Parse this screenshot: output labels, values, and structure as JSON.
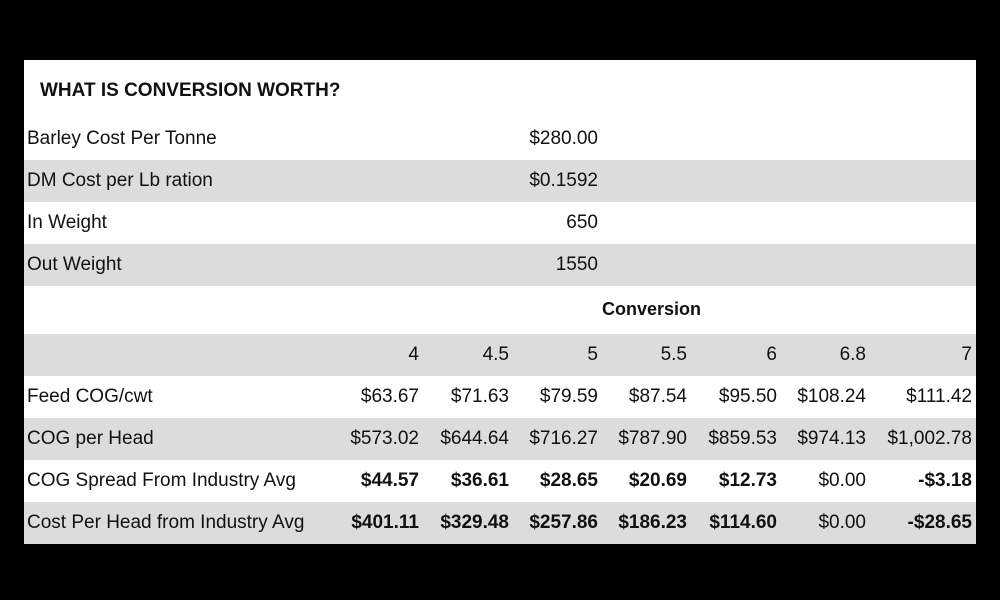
{
  "title": "WHAT IS CONVERSION WORTH?",
  "params": [
    {
      "label": "Barley Cost Per Tonne",
      "value": "$280.00"
    },
    {
      "label": "DM Cost per Lb ration",
      "value": "$0.1592"
    },
    {
      "label": "In Weight",
      "value": "650"
    },
    {
      "label": "Out Weight",
      "value": "1550"
    }
  ],
  "conversion_header": "Conversion",
  "conversion_values": [
    "4",
    "4.5",
    "5",
    "5.5",
    "6",
    "6.8",
    "7"
  ],
  "rows": [
    {
      "label": "Feed COG/cwt",
      "values": [
        "$63.67",
        "$71.63",
        "$79.59",
        "$87.54",
        "$95.50",
        "$108.24",
        "$111.42"
      ],
      "bold": [
        false,
        false,
        false,
        false,
        false,
        false,
        false
      ]
    },
    {
      "label": "COG per Head",
      "values": [
        "$573.02",
        "$644.64",
        "$716.27",
        "$787.90",
        "$859.53",
        "$974.13",
        "$1,002.78"
      ],
      "bold": [
        false,
        false,
        false,
        false,
        false,
        false,
        false
      ]
    },
    {
      "label": "COG Spread From Industry Avg",
      "values": [
        "$44.57",
        "$36.61",
        "$28.65",
        "$20.69",
        "$12.73",
        "$0.00",
        "-$3.18"
      ],
      "bold": [
        true,
        true,
        true,
        true,
        true,
        false,
        true
      ]
    },
    {
      "label": "Cost Per Head from Industry Avg",
      "values": [
        "$401.11",
        "$329.48",
        "$257.86",
        "$186.23",
        "$114.60",
        "$0.00",
        "-$28.65"
      ],
      "bold": [
        true,
        true,
        true,
        true,
        true,
        false,
        true
      ]
    }
  ]
}
